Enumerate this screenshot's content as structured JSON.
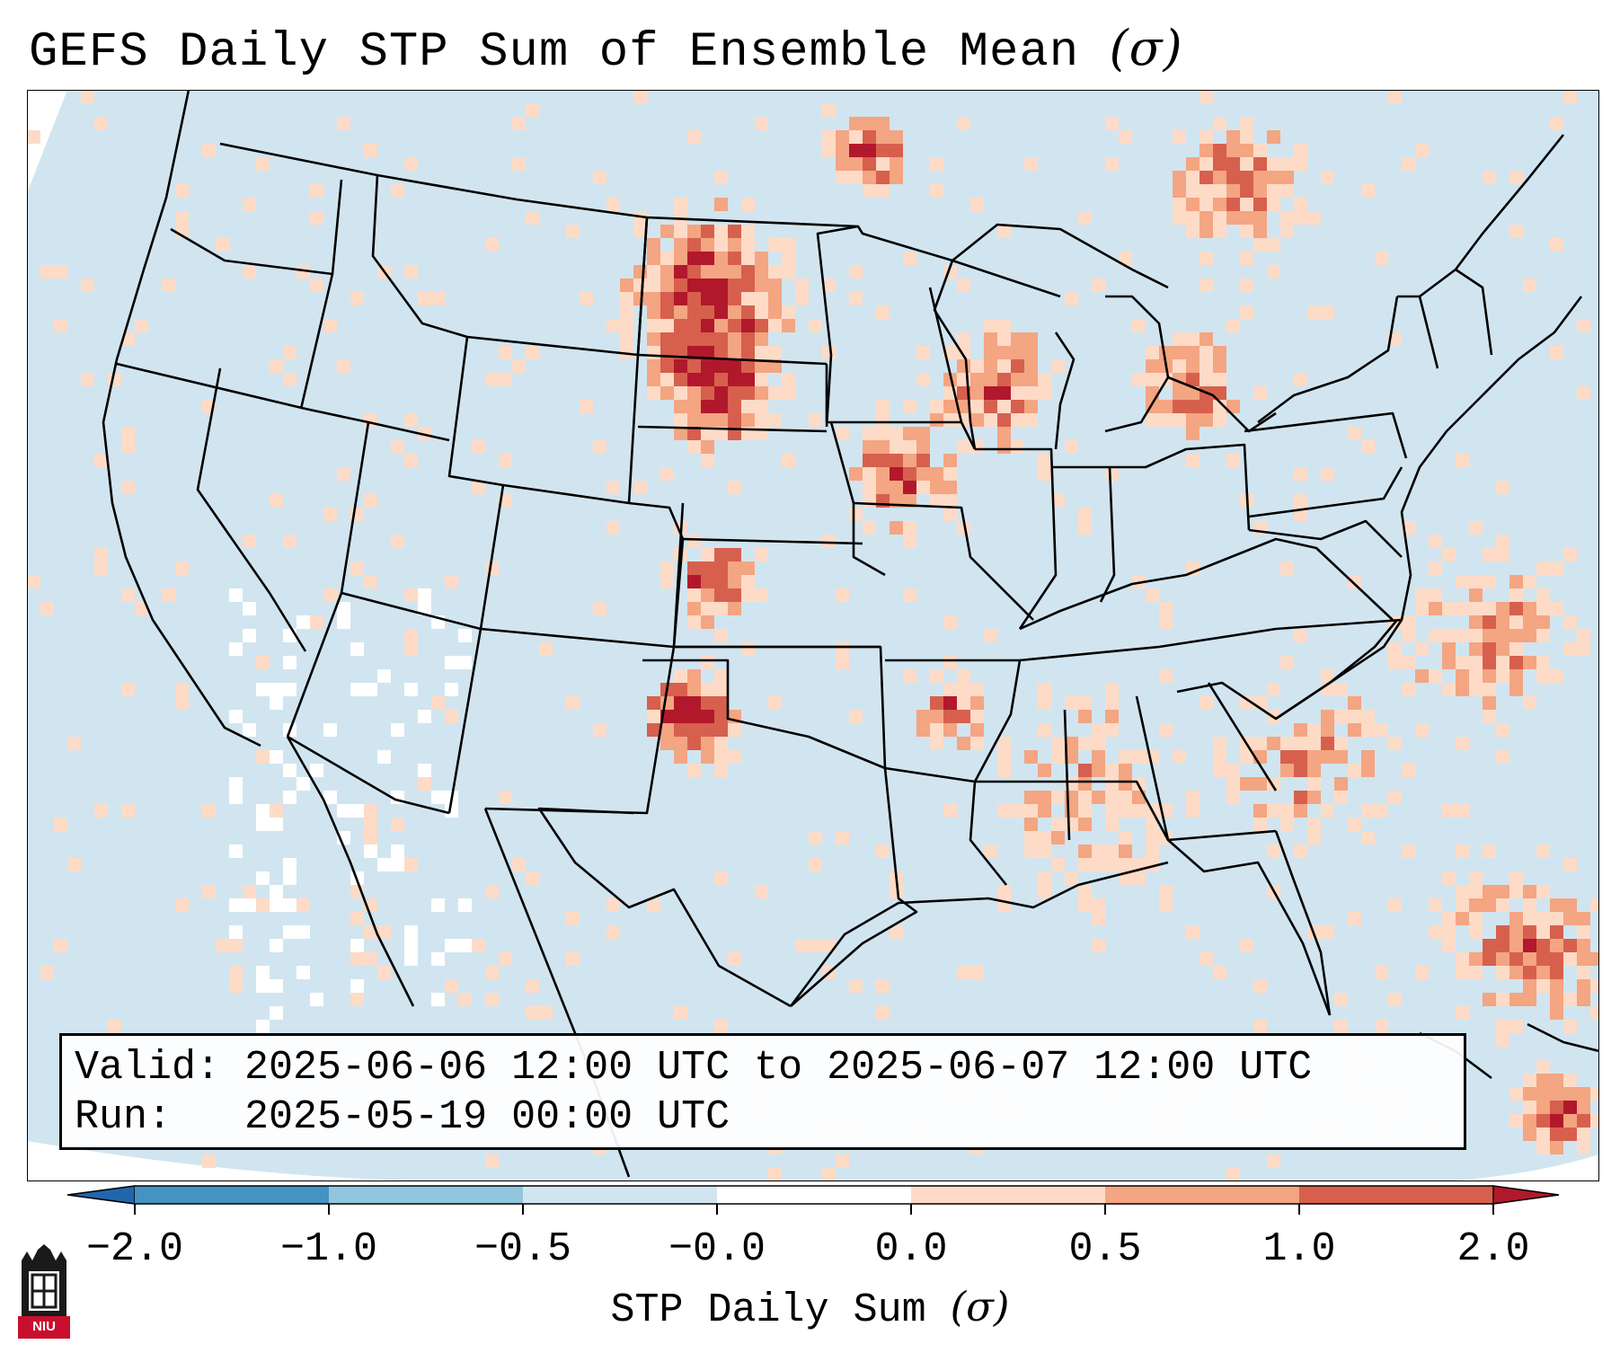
{
  "title": "GEFS Daily STP Sum of Ensemble Mean",
  "title_symbol": "(σ)",
  "info": {
    "valid_label": "Valid:",
    "valid_value": "2025-06-06 12:00 UTC to 2025-06-07 12:00 UTC",
    "run_label": "Run:",
    "run_value": "2025-05-19 00:00 UTC"
  },
  "colorbar": {
    "label": "STP Daily Sum",
    "label_symbol": "(σ)",
    "ticks": [
      "-2.0",
      "-1.0",
      "-0.5",
      "-0.0",
      "0.0",
      "0.5",
      "1.0",
      "2.0"
    ],
    "colors": [
      "#2166ac",
      "#4393c3",
      "#92c5de",
      "#d1e5f0",
      "#ffffff",
      "#fddbc7",
      "#f4a582",
      "#d6604d",
      "#b2182b"
    ],
    "extend": "both"
  },
  "logo": {
    "text": "NIU",
    "color": "#c8102e"
  },
  "map": {
    "region": "Contiguous United States",
    "ocean_color": "#d1e5f0",
    "background_category": "-0.5 to -0.0"
  }
}
